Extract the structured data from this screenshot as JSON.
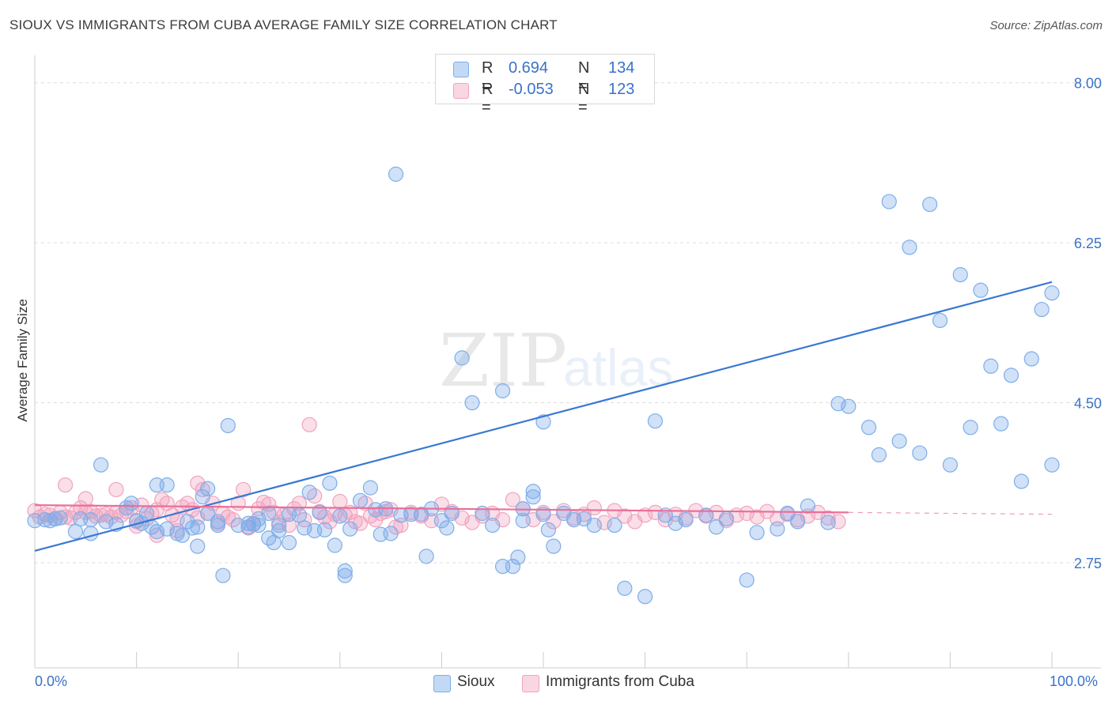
{
  "header": {
    "title": "SIOUX VS IMMIGRANTS FROM CUBA AVERAGE FAMILY SIZE CORRELATION CHART",
    "source": "Source: ZipAtlas.com"
  },
  "legend": {
    "rows": [
      {
        "r_label": "R =",
        "r_value": "0.694",
        "n_label": "N =",
        "n_value": "134",
        "color": "#7eaee8"
      },
      {
        "r_label": "R =",
        "r_value": "-0.053",
        "n_label": "N =",
        "n_value": "123",
        "color": "#f2a3bd"
      }
    ]
  },
  "bottom_legend": {
    "series1": "Sioux",
    "series2": "Immigrants from Cuba"
  },
  "colors": {
    "blue": "#3a78d4",
    "blue_fill": "rgba(120,170,235,0.35)",
    "pink": "#e8709a",
    "pink_fill": "rgba(242,160,190,0.35)",
    "grid": "#dddddd",
    "axis_text": "#3a72c8"
  },
  "chart_data": {
    "type": "scatter",
    "ylabel": "Average Family Size",
    "xlabel": "",
    "x_tick_labels": [
      "0.0%",
      "100.0%"
    ],
    "y_ticks": [
      2.75,
      4.5,
      6.25,
      8.0
    ],
    "y_tick_labels": [
      "2.75",
      "4.50",
      "6.25",
      "8.00"
    ],
    "xlim": [
      0,
      100
    ],
    "ylim": [
      1.6,
      8.3
    ],
    "grid": true,
    "legend_position": "top-center",
    "series": [
      {
        "name": "Sioux",
        "color": "#3a78d4",
        "trend": {
          "x": [
            0,
            100
          ],
          "y": [
            2.88,
            5.82
          ]
        },
        "points": [
          [
            0,
            3.21
          ],
          [
            1,
            3.22
          ],
          [
            1.5,
            3.21
          ],
          [
            2,
            3.23
          ],
          [
            2.5,
            3.24
          ],
          [
            4,
            3.09
          ],
          [
            4.5,
            3.23
          ],
          [
            5.5,
            3.07
          ],
          [
            5.5,
            3.22
          ],
          [
            6.5,
            3.82
          ],
          [
            7,
            3.2
          ],
          [
            8,
            3.17
          ],
          [
            9,
            3.35
          ],
          [
            9.5,
            3.4
          ],
          [
            10,
            3.21
          ],
          [
            10.5,
            3.18
          ],
          [
            11,
            3.29
          ],
          [
            11.5,
            3.14
          ],
          [
            12,
            3.6
          ],
          [
            12,
            3.09
          ],
          [
            13,
            3.6
          ],
          [
            13,
            3.12
          ],
          [
            14,
            3.07
          ],
          [
            14.5,
            3.05
          ],
          [
            15,
            3.2
          ],
          [
            15.5,
            3.13
          ],
          [
            16,
            3.14
          ],
          [
            16,
            2.93
          ],
          [
            16.5,
            3.47
          ],
          [
            17,
            3.56
          ],
          [
            17,
            3.29
          ],
          [
            18,
            3.2
          ],
          [
            18,
            3.16
          ],
          [
            18.5,
            2.61
          ],
          [
            19,
            4.25
          ],
          [
            20,
            3.16
          ],
          [
            21,
            3.18
          ],
          [
            21,
            3.14
          ],
          [
            21.5,
            3.17
          ],
          [
            22,
            3.23
          ],
          [
            22,
            3.16
          ],
          [
            23,
            3.29
          ],
          [
            23,
            3.02
          ],
          [
            23.5,
            2.97
          ],
          [
            24,
            3.16
          ],
          [
            24,
            3.1
          ],
          [
            25,
            2.97
          ],
          [
            25,
            3.28
          ],
          [
            26,
            3.27
          ],
          [
            26.5,
            3.13
          ],
          [
            27,
            3.52
          ],
          [
            27.5,
            3.1
          ],
          [
            28,
            3.3
          ],
          [
            28.5,
            3.11
          ],
          [
            29,
            3.62
          ],
          [
            29.5,
            2.94
          ],
          [
            30,
            3.26
          ],
          [
            30.5,
            2.66
          ],
          [
            30.5,
            2.61
          ],
          [
            31,
            3.12
          ],
          [
            32,
            3.43
          ],
          [
            33,
            3.57
          ],
          [
            33.5,
            3.33
          ],
          [
            34,
            3.06
          ],
          [
            34.5,
            3.34
          ],
          [
            35,
            3.07
          ],
          [
            35.5,
            7.0
          ],
          [
            36,
            3.27
          ],
          [
            37,
            3.28
          ],
          [
            38,
            3.28
          ],
          [
            38.5,
            2.82
          ],
          [
            39,
            3.34
          ],
          [
            40,
            3.21
          ],
          [
            40.5,
            3.13
          ],
          [
            41,
            3.29
          ],
          [
            42,
            4.99
          ],
          [
            43,
            4.5
          ],
          [
            44,
            3.29
          ],
          [
            45,
            3.16
          ],
          [
            46,
            4.63
          ],
          [
            46,
            2.71
          ],
          [
            47,
            2.71
          ],
          [
            47.5,
            2.81
          ],
          [
            48,
            3.34
          ],
          [
            48,
            3.21
          ],
          [
            49,
            3.53
          ],
          [
            49,
            3.47
          ],
          [
            50,
            3.28
          ],
          [
            50,
            4.29
          ],
          [
            50.5,
            3.11
          ],
          [
            51,
            2.93
          ],
          [
            52,
            3.29
          ],
          [
            53,
            3.22
          ],
          [
            54,
            3.23
          ],
          [
            55,
            3.16
          ],
          [
            57,
            3.16
          ],
          [
            58,
            2.47
          ],
          [
            60,
            2.38
          ],
          [
            61,
            4.3
          ],
          [
            62,
            3.27
          ],
          [
            63,
            3.18
          ],
          [
            64,
            3.22
          ],
          [
            66,
            3.27
          ],
          [
            67,
            3.14
          ],
          [
            68,
            3.23
          ],
          [
            70,
            2.56
          ],
          [
            71,
            3.08
          ],
          [
            73,
            3.12
          ],
          [
            74,
            3.29
          ],
          [
            75,
            3.2
          ],
          [
            76,
            3.37
          ],
          [
            78,
            3.19
          ],
          [
            79,
            4.49
          ],
          [
            80,
            4.46
          ],
          [
            82,
            4.23
          ],
          [
            83,
            3.93
          ],
          [
            84,
            6.7
          ],
          [
            85,
            4.08
          ],
          [
            86,
            6.2
          ],
          [
            87,
            3.95
          ],
          [
            88,
            6.67
          ],
          [
            89,
            5.4
          ],
          [
            90,
            3.82
          ],
          [
            91,
            5.9
          ],
          [
            92,
            4.23
          ],
          [
            93,
            5.73
          ],
          [
            94,
            4.9
          ],
          [
            95,
            4.27
          ],
          [
            96,
            4.8
          ],
          [
            97,
            3.64
          ],
          [
            98,
            4.98
          ],
          [
            99,
            5.52
          ],
          [
            100,
            5.7
          ],
          [
            100,
            3.82
          ]
        ]
      },
      {
        "name": "Immigrants from Cuba",
        "color": "#e8709a",
        "trend": {
          "x": [
            0,
            80
          ],
          "y": [
            3.38,
            3.3
          ]
        },
        "points": [
          [
            0,
            3.32
          ],
          [
            0.5,
            3.25
          ],
          [
            1,
            3.28
          ],
          [
            1.5,
            3.27
          ],
          [
            2,
            3.23
          ],
          [
            2.5,
            3.3
          ],
          [
            3,
            3.25
          ],
          [
            3.5,
            3.24
          ],
          [
            4,
            3.3
          ],
          [
            4.5,
            3.35
          ],
          [
            5,
            3.3
          ],
          [
            5.5,
            3.31
          ],
          [
            6,
            3.26
          ],
          [
            6.5,
            3.27
          ],
          [
            7,
            3.28
          ],
          [
            7.5,
            3.25
          ],
          [
            8,
            3.3
          ],
          [
            8.5,
            3.27
          ],
          [
            9,
            3.31
          ],
          [
            9.5,
            3.35
          ],
          [
            10,
            3.2
          ],
          [
            10.5,
            3.38
          ],
          [
            11,
            3.23
          ],
          [
            11.5,
            3.29
          ],
          [
            12,
            3.33
          ],
          [
            12.5,
            3.44
          ],
          [
            13,
            3.4
          ],
          [
            13.5,
            3.27
          ],
          [
            14,
            3.22
          ],
          [
            14.5,
            3.36
          ],
          [
            15,
            3.4
          ],
          [
            15.5,
            3.33
          ],
          [
            16,
            3.24
          ],
          [
            16.5,
            3.55
          ],
          [
            17,
            3.29
          ],
          [
            17.5,
            3.4
          ],
          [
            18,
            3.18
          ],
          [
            18.5,
            3.29
          ],
          [
            19,
            3.25
          ],
          [
            19.5,
            3.22
          ],
          [
            20,
            3.4
          ],
          [
            20.5,
            3.55
          ],
          [
            21,
            3.13
          ],
          [
            21.5,
            3.18
          ],
          [
            22,
            3.34
          ],
          [
            22.5,
            3.41
          ],
          [
            23,
            3.39
          ],
          [
            23.5,
            3.3
          ],
          [
            24,
            3.19
          ],
          [
            24.5,
            3.27
          ],
          [
            25,
            3.16
          ],
          [
            25.5,
            3.34
          ],
          [
            26,
            3.4
          ],
          [
            26.5,
            3.22
          ],
          [
            27,
            4.26
          ],
          [
            27.5,
            3.48
          ],
          [
            28,
            3.31
          ],
          [
            28.5,
            3.25
          ],
          [
            29,
            3.2
          ],
          [
            29.5,
            3.28
          ],
          [
            30,
            3.42
          ],
          [
            30.5,
            3.27
          ],
          [
            31,
            3.3
          ],
          [
            31.5,
            3.2
          ],
          [
            32,
            3.18
          ],
          [
            32.5,
            3.4
          ],
          [
            33,
            3.26
          ],
          [
            33.5,
            3.22
          ],
          [
            34,
            3.29
          ],
          [
            34.5,
            3.31
          ],
          [
            35,
            3.33
          ],
          [
            35.5,
            3.14
          ],
          [
            36,
            3.16
          ],
          [
            37,
            3.3
          ],
          [
            38,
            3.26
          ],
          [
            39,
            3.21
          ],
          [
            40,
            3.39
          ],
          [
            41,
            3.31
          ],
          [
            42,
            3.24
          ],
          [
            43,
            3.19
          ],
          [
            44,
            3.26
          ],
          [
            45,
            3.29
          ],
          [
            46,
            3.22
          ],
          [
            47,
            3.44
          ],
          [
            48,
            3.34
          ],
          [
            49,
            3.22
          ],
          [
            50,
            3.3
          ],
          [
            51,
            3.2
          ],
          [
            52,
            3.32
          ],
          [
            53,
            3.24
          ],
          [
            54,
            3.28
          ],
          [
            55,
            3.35
          ],
          [
            56,
            3.19
          ],
          [
            57,
            3.32
          ],
          [
            58,
            3.26
          ],
          [
            59,
            3.2
          ],
          [
            60,
            3.27
          ],
          [
            61,
            3.3
          ],
          [
            62,
            3.22
          ],
          [
            63,
            3.28
          ],
          [
            64,
            3.24
          ],
          [
            65,
            3.32
          ],
          [
            66,
            3.26
          ],
          [
            67,
            3.3
          ],
          [
            68,
            3.21
          ],
          [
            69,
            3.27
          ],
          [
            70,
            3.29
          ],
          [
            71,
            3.25
          ],
          [
            72,
            3.31
          ],
          [
            73,
            3.23
          ],
          [
            74,
            3.28
          ],
          [
            75,
            3.22
          ],
          [
            76,
            3.26
          ],
          [
            77,
            3.3
          ],
          [
            78,
            3.24
          ],
          [
            79,
            3.2
          ],
          [
            3,
            3.6
          ],
          [
            5,
            3.45
          ],
          [
            8,
            3.55
          ],
          [
            10,
            3.15
          ],
          [
            12,
            3.05
          ],
          [
            14,
            3.1
          ],
          [
            16,
            3.62
          ]
        ]
      }
    ]
  }
}
